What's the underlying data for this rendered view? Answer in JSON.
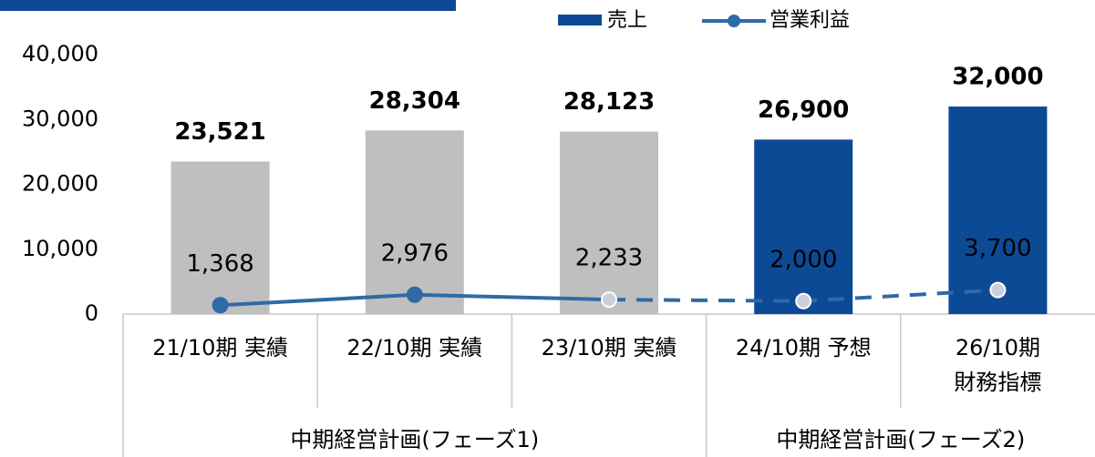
{
  "chart_data": {
    "type": "bar_line",
    "categories": [
      [
        "21/10期 実績"
      ],
      [
        "22/10期 実績"
      ],
      [
        "23/10期 実績"
      ],
      [
        "24/10期 予想"
      ],
      [
        "26/10期",
        "財務指標"
      ]
    ],
    "groups": [
      {
        "label": "中期経営計画(フェーズ1)",
        "span": [
          0,
          2
        ]
      },
      {
        "label": "中期経営計画(フェーズ2)",
        "span": [
          3,
          4
        ]
      }
    ],
    "series": [
      {
        "name": "売上",
        "type": "bar",
        "colors": [
          "#bfbfbf",
          "#bfbfbf",
          "#bfbfbf",
          "#0d4a96",
          "#0d4a96"
        ],
        "values": [
          23521,
          28304,
          28123,
          26900,
          32000
        ],
        "value_labels": [
          "23,521",
          "28,304",
          "28,123",
          "26,900",
          "32,000"
        ]
      },
      {
        "name": "営業利益",
        "type": "line",
        "color": "#2e6aa6",
        "dashed_from": 2,
        "values": [
          1368,
          2976,
          2233,
          2000,
          3700
        ],
        "value_labels": [
          "1,368",
          "2,976",
          "2,233",
          "2,000",
          "3,700"
        ]
      }
    ],
    "ylim": [
      0,
      40000
    ],
    "yticks": [
      {
        "value": 0,
        "label": "0"
      },
      {
        "value": 10000,
        "label": "10,000"
      },
      {
        "value": 20000,
        "label": "20,000"
      },
      {
        "value": 30000,
        "label": "30,000"
      },
      {
        "value": 40000,
        "label": "40,000"
      }
    ]
  }
}
